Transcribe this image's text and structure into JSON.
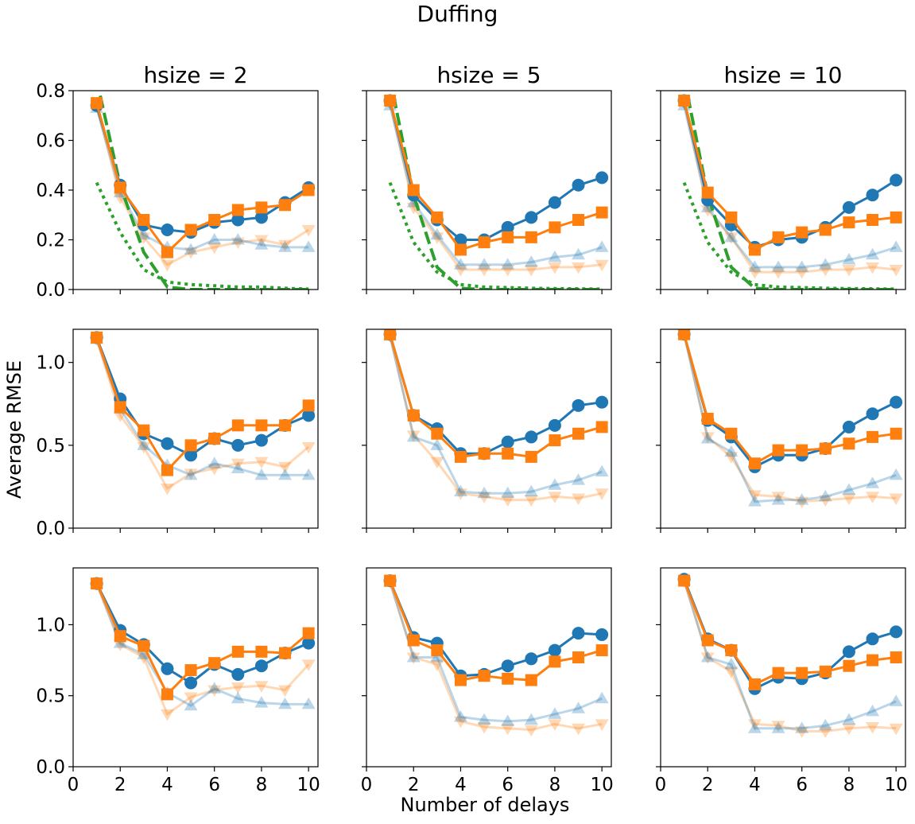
{
  "title": "Duffing",
  "xlabel": "Number of delays",
  "ylabel": "Average RMSE",
  "colors": {
    "blue": "#1f77b4",
    "orange": "#ff7f0e",
    "green": "#2ca02c",
    "light_blue": "#a6c8e0",
    "light_orange": "#ffc79a"
  },
  "chart_data": {
    "type": "line",
    "layout": "3x3 grid",
    "grid": false,
    "column_titles": [
      "hsize = 2",
      "hsize = 5",
      "hsize = 10"
    ],
    "x": [
      1,
      2,
      3,
      4,
      5,
      6,
      7,
      8,
      9,
      10
    ],
    "xlim": [
      0,
      10.4
    ],
    "xticks": [
      0,
      2,
      4,
      6,
      8,
      10
    ],
    "rows": [
      {
        "ylim": [
          0,
          0.8
        ],
        "yticks": [
          0.0,
          0.2,
          0.4,
          0.6,
          0.8
        ],
        "ytick_labels": [
          "0.0",
          "0.2",
          "0.4",
          "0.6",
          "0.8"
        ],
        "panels": [
          {
            "circle": [
              0.74,
              0.42,
              0.26,
              0.24,
              0.23,
              0.27,
              0.28,
              0.29,
              0.35,
              0.41
            ],
            "square": [
              0.75,
              0.41,
              0.28,
              0.15,
              0.24,
              0.28,
              0.32,
              0.33,
              0.34,
              0.4
            ],
            "triangle_up": [
              0.73,
              0.39,
              0.22,
              0.17,
              0.16,
              0.2,
              0.2,
              0.18,
              0.17,
              0.17
            ],
            "triangle_down": [
              0.74,
              0.37,
              0.21,
              0.1,
              0.15,
              0.17,
              0.19,
              0.2,
              0.18,
              0.24
            ],
            "dashed": [
              [
                1.15,
                0.78
              ],
              [
                2,
                0.42
              ],
              [
                3,
                0.15
              ],
              [
                4,
                0.01
              ],
              [
                5,
                0
              ],
              [
                6,
                0
              ],
              [
                7,
                0
              ],
              [
                8,
                0
              ],
              [
                9,
                0
              ],
              [
                10,
                0
              ]
            ],
            "dotted": [
              [
                1,
                0.43
              ],
              [
                2,
                0.23
              ],
              [
                3,
                0.08
              ],
              [
                4,
                0.03
              ],
              [
                5,
                0.02
              ],
              [
                6,
                0.015
              ],
              [
                7,
                0.01
              ],
              [
                8,
                0.01
              ],
              [
                9,
                0.005
              ],
              [
                10,
                0.002
              ]
            ]
          },
          {
            "circle": [
              0.76,
              0.38,
              0.28,
              0.2,
              0.2,
              0.25,
              0.29,
              0.35,
              0.42,
              0.45
            ],
            "square": [
              0.76,
              0.4,
              0.29,
              0.16,
              0.19,
              0.21,
              0.21,
              0.25,
              0.28,
              0.31
            ],
            "triangle_up": [
              0.74,
              0.35,
              0.22,
              0.1,
              0.1,
              0.1,
              0.11,
              0.13,
              0.14,
              0.17
            ],
            "triangle_down": [
              0.75,
              0.33,
              0.21,
              0.08,
              0.08,
              0.08,
              0.08,
              0.09,
              0.09,
              0.1
            ],
            "dashed": [
              [
                1.15,
                0.78
              ],
              [
                2,
                0.38
              ],
              [
                3,
                0.09
              ],
              [
                4,
                0.005
              ],
              [
                5,
                0
              ],
              [
                6,
                0
              ],
              [
                7,
                0
              ],
              [
                8,
                0
              ],
              [
                9,
                0
              ],
              [
                10,
                0
              ]
            ],
            "dotted": [
              [
                1,
                0.43
              ],
              [
                2,
                0.19
              ],
              [
                3,
                0.07
              ],
              [
                4,
                0.02
              ],
              [
                5,
                0.01
              ],
              [
                6,
                0.008
              ],
              [
                7,
                0.005
              ],
              [
                8,
                0.004
              ],
              [
                9,
                0.003
              ],
              [
                10,
                0.002
              ]
            ]
          },
          {
            "circle": [
              0.76,
              0.36,
              0.26,
              0.17,
              0.2,
              0.21,
              0.25,
              0.33,
              0.38,
              0.44
            ],
            "square": [
              0.76,
              0.39,
              0.29,
              0.16,
              0.21,
              0.23,
              0.24,
              0.27,
              0.28,
              0.29
            ],
            "triangle_up": [
              0.74,
              0.33,
              0.21,
              0.09,
              0.09,
              0.09,
              0.1,
              0.12,
              0.14,
              0.17
            ],
            "triangle_down": [
              0.75,
              0.32,
              0.21,
              0.07,
              0.07,
              0.07,
              0.08,
              0.08,
              0.09,
              0.08
            ],
            "dashed": [
              [
                1.15,
                0.78
              ],
              [
                2,
                0.38
              ],
              [
                3,
                0.09
              ],
              [
                4,
                0.005
              ],
              [
                5,
                0
              ],
              [
                6,
                0
              ],
              [
                7,
                0
              ],
              [
                8,
                0
              ],
              [
                9,
                0
              ],
              [
                10,
                0
              ]
            ],
            "dotted": [
              [
                1,
                0.43
              ],
              [
                2,
                0.19
              ],
              [
                3,
                0.07
              ],
              [
                4,
                0.02
              ],
              [
                5,
                0.01
              ],
              [
                6,
                0.008
              ],
              [
                7,
                0.005
              ],
              [
                8,
                0.004
              ],
              [
                9,
                0.003
              ],
              [
                10,
                0.002
              ]
            ]
          }
        ]
      },
      {
        "ylim": [
          0,
          1.2
        ],
        "yticks": [
          0.0,
          0.5,
          1.0
        ],
        "ytick_labels": [
          "0.0",
          "0.5",
          "1.0"
        ],
        "panels": [
          {
            "circle": [
              1.15,
              0.78,
              0.57,
              0.51,
              0.44,
              0.54,
              0.5,
              0.53,
              0.62,
              0.68
            ],
            "square": [
              1.15,
              0.73,
              0.59,
              0.35,
              0.5,
              0.54,
              0.62,
              0.62,
              0.62,
              0.74
            ],
            "triangle_up": [
              1.14,
              0.72,
              0.5,
              0.38,
              0.32,
              0.39,
              0.36,
              0.32,
              0.32,
              0.32
            ],
            "triangle_down": [
              1.14,
              0.68,
              0.49,
              0.24,
              0.33,
              0.36,
              0.39,
              0.4,
              0.37,
              0.49
            ]
          },
          {
            "circle": [
              1.17,
              0.68,
              0.6,
              0.45,
              0.45,
              0.52,
              0.55,
              0.62,
              0.74,
              0.76
            ],
            "square": [
              1.17,
              0.68,
              0.57,
              0.43,
              0.45,
              0.45,
              0.43,
              0.53,
              0.57,
              0.61
            ],
            "triangle_up": [
              1.16,
              0.55,
              0.5,
              0.22,
              0.21,
              0.21,
              0.22,
              0.26,
              0.29,
              0.34
            ],
            "triangle_down": [
              1.16,
              0.56,
              0.4,
              0.21,
              0.19,
              0.17,
              0.17,
              0.19,
              0.18,
              0.21
            ]
          },
          {
            "circle": [
              1.17,
              0.65,
              0.55,
              0.37,
              0.44,
              0.44,
              0.48,
              0.61,
              0.69,
              0.76
            ],
            "square": [
              1.17,
              0.66,
              0.57,
              0.39,
              0.47,
              0.47,
              0.48,
              0.51,
              0.55,
              0.57
            ],
            "triangle_up": [
              1.17,
              0.54,
              0.46,
              0.16,
              0.17,
              0.17,
              0.19,
              0.23,
              0.27,
              0.32
            ],
            "triangle_down": [
              1.17,
              0.55,
              0.43,
              0.2,
              0.19,
              0.16,
              0.17,
              0.18,
              0.19,
              0.18
            ]
          }
        ]
      },
      {
        "ylim": [
          0,
          1.4
        ],
        "yticks": [
          0.0,
          0.5,
          1.0
        ],
        "ytick_labels": [
          "0.0",
          "0.5",
          "1.0"
        ],
        "panels": [
          {
            "circle": [
              1.29,
              0.96,
              0.86,
              0.69,
              0.59,
              0.72,
              0.65,
              0.71,
              0.8,
              0.87
            ],
            "square": [
              1.29,
              0.92,
              0.85,
              0.51,
              0.68,
              0.73,
              0.81,
              0.81,
              0.8,
              0.94
            ],
            "triangle_up": [
              1.29,
              0.87,
              0.79,
              0.52,
              0.43,
              0.55,
              0.48,
              0.45,
              0.44,
              0.44
            ],
            "triangle_down": [
              1.29,
              0.86,
              0.77,
              0.37,
              0.49,
              0.54,
              0.56,
              0.57,
              0.54,
              0.72
            ]
          },
          {
            "circle": [
              1.31,
              0.91,
              0.87,
              0.64,
              0.65,
              0.71,
              0.76,
              0.82,
              0.94,
              0.93
            ],
            "square": [
              1.31,
              0.89,
              0.82,
              0.61,
              0.64,
              0.62,
              0.61,
              0.74,
              0.77,
              0.82
            ],
            "triangle_up": [
              1.3,
              0.77,
              0.77,
              0.35,
              0.33,
              0.32,
              0.33,
              0.37,
              0.41,
              0.48
            ],
            "triangle_down": [
              1.3,
              0.77,
              0.72,
              0.32,
              0.28,
              0.27,
              0.26,
              0.3,
              0.27,
              0.3
            ]
          },
          {
            "circle": [
              1.32,
              0.9,
              0.82,
              0.55,
              0.63,
              0.62,
              0.66,
              0.81,
              0.9,
              0.95
            ],
            "square": [
              1.31,
              0.89,
              0.82,
              0.58,
              0.66,
              0.66,
              0.67,
              0.71,
              0.75,
              0.77
            ],
            "triangle_up": [
              1.31,
              0.77,
              0.72,
              0.27,
              0.27,
              0.27,
              0.29,
              0.33,
              0.39,
              0.46
            ],
            "triangle_down": [
              1.31,
              0.77,
              0.67,
              0.3,
              0.29,
              0.25,
              0.25,
              0.27,
              0.28,
              0.27
            ]
          }
        ]
      }
    ],
    "series_styles": {
      "circle": {
        "color": "#1f77b4",
        "marker": "circle",
        "alpha": 1.0,
        "line": "solid"
      },
      "square": {
        "color": "#ff7f0e",
        "marker": "square",
        "alpha": 1.0,
        "line": "solid"
      },
      "triangle_up": {
        "color": "#1f77b4",
        "marker": "triangle-up",
        "alpha": 0.3,
        "line": "solid"
      },
      "triangle_down": {
        "color": "#ff7f0e",
        "marker": "triangle-down",
        "alpha": 0.3,
        "line": "solid"
      },
      "dashed": {
        "color": "#2ca02c",
        "marker": "none",
        "alpha": 1.0,
        "line": "dashed"
      },
      "dotted": {
        "color": "#2ca02c",
        "marker": "none",
        "alpha": 1.0,
        "line": "dotted"
      }
    }
  }
}
